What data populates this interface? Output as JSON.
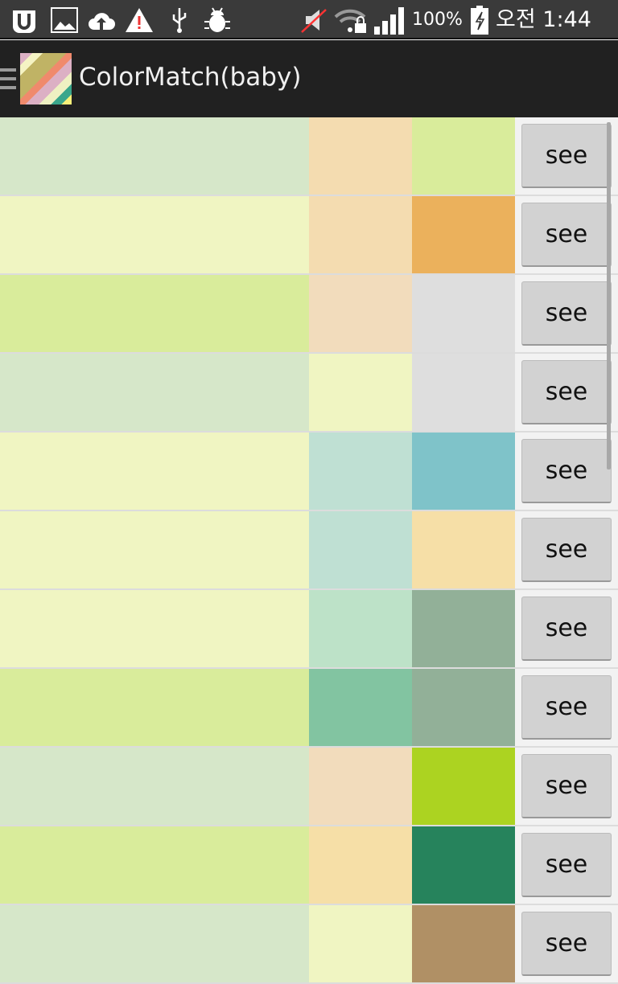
{
  "status_bar": {
    "battery": "100%",
    "time": "오전 1:44",
    "icons": [
      "uplus-icon",
      "image-icon",
      "cloud-upload-icon",
      "warning-icon",
      "usb-icon",
      "debug-icon",
      "mute-icon",
      "wifi-lock-icon",
      "signal-icon",
      "battery-charging-icon"
    ]
  },
  "app_bar": {
    "title": "ColorMatch(baby)"
  },
  "rows": [
    {
      "colors": [
        "#d6e7c9",
        "#f4dcb0",
        "#d9ec9b"
      ],
      "button": "see"
    },
    {
      "colors": [
        "#f0f5c2",
        "#f4dcb0",
        "#ebb15c"
      ],
      "button": "see"
    },
    {
      "colors": [
        "#d9ec9b",
        "#f2dcbc",
        "#dedede"
      ],
      "button": "see"
    },
    {
      "colors": [
        "#d6e7c9",
        "#f0f5c2",
        "#dedede"
      ],
      "button": "see"
    },
    {
      "colors": [
        "#f0f5c2",
        "#bfe0d3",
        "#7fc3c9"
      ],
      "button": "see"
    },
    {
      "colors": [
        "#f0f5c2",
        "#bfe0d3",
        "#f6dfa7"
      ],
      "button": "see"
    },
    {
      "colors": [
        "#f0f5c2",
        "#bde2c8",
        "#92b098"
      ],
      "button": "see"
    },
    {
      "colors": [
        "#d9ec9b",
        "#82c4a1",
        "#92b098"
      ],
      "button": "see"
    },
    {
      "colors": [
        "#d6e7c9",
        "#f2dcbc",
        "#acd321"
      ],
      "button": "see"
    },
    {
      "colors": [
        "#d9ec9b",
        "#f6dfa7",
        "#26835c"
      ],
      "button": "see"
    },
    {
      "colors": [
        "#d6e7c9",
        "#f0f5c2",
        "#b09065"
      ],
      "button": "see"
    }
  ]
}
